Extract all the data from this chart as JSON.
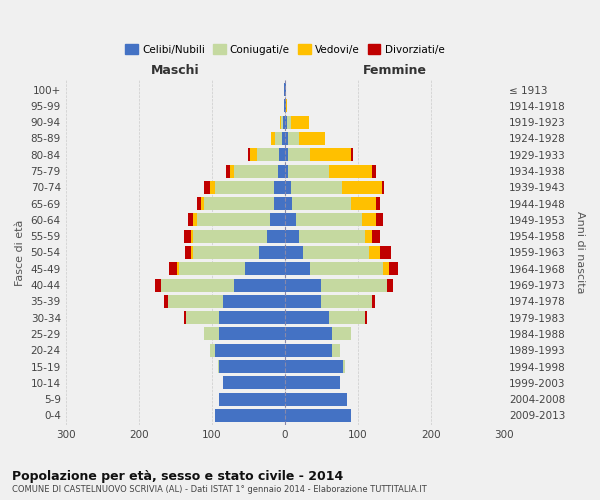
{
  "age_groups": [
    "0-4",
    "5-9",
    "10-14",
    "15-19",
    "20-24",
    "25-29",
    "30-34",
    "35-39",
    "40-44",
    "45-49",
    "50-54",
    "55-59",
    "60-64",
    "65-69",
    "70-74",
    "75-79",
    "80-84",
    "85-89",
    "90-94",
    "95-99",
    "100+"
  ],
  "birth_years": [
    "2009-2013",
    "2004-2008",
    "1999-2003",
    "1994-1998",
    "1989-1993",
    "1984-1988",
    "1979-1983",
    "1974-1978",
    "1969-1973",
    "1964-1968",
    "1959-1963",
    "1954-1958",
    "1949-1953",
    "1944-1948",
    "1939-1943",
    "1934-1938",
    "1929-1933",
    "1924-1928",
    "1919-1923",
    "1914-1918",
    "≤ 1913"
  ],
  "maschi": {
    "celibi": [
      95,
      90,
      85,
      90,
      95,
      90,
      90,
      85,
      70,
      55,
      35,
      25,
      20,
      15,
      15,
      10,
      8,
      4,
      2,
      1,
      1
    ],
    "coniugati": [
      0,
      0,
      0,
      2,
      8,
      20,
      45,
      75,
      100,
      90,
      90,
      100,
      100,
      95,
      80,
      60,
      30,
      10,
      3,
      0,
      0
    ],
    "vedovi": [
      0,
      0,
      0,
      0,
      0,
      0,
      0,
      0,
      0,
      2,
      3,
      3,
      5,
      5,
      8,
      5,
      10,
      5,
      2,
      0,
      0
    ],
    "divorziati": [
      0,
      0,
      0,
      0,
      0,
      0,
      3,
      5,
      8,
      12,
      8,
      10,
      8,
      5,
      8,
      5,
      3,
      0,
      0,
      0,
      0
    ]
  },
  "femmine": {
    "nubili": [
      90,
      85,
      75,
      80,
      65,
      65,
      60,
      50,
      50,
      35,
      25,
      20,
      15,
      10,
      8,
      5,
      5,
      5,
      3,
      1,
      1
    ],
    "coniugate": [
      0,
      0,
      0,
      3,
      10,
      25,
      50,
      70,
      90,
      100,
      90,
      90,
      90,
      80,
      70,
      55,
      30,
      15,
      5,
      0,
      0
    ],
    "vedove": [
      0,
      0,
      0,
      0,
      0,
      0,
      0,
      0,
      0,
      8,
      15,
      10,
      20,
      35,
      55,
      60,
      55,
      35,
      25,
      2,
      0
    ],
    "divorziate": [
      0,
      0,
      0,
      0,
      0,
      0,
      2,
      3,
      8,
      12,
      15,
      10,
      10,
      5,
      3,
      5,
      3,
      0,
      0,
      0,
      0
    ]
  },
  "colors": {
    "celibi": "#4472c4",
    "coniugati": "#c5d9a0",
    "vedovi": "#ffc000",
    "divorziati": "#c00000"
  },
  "title": "Popolazione per età, sesso e stato civile - 2014",
  "subtitle": "COMUNE DI CASTELNUOVO SCRIVIA (AL) - Dati ISTAT 1° gennaio 2014 - Elaborazione TUTTITALIA.IT",
  "xlabel_left": "Maschi",
  "xlabel_right": "Femmine",
  "ylabel_left": "Fasce di età",
  "ylabel_right": "Anni di nascita",
  "xlim": 300,
  "bg_color": "#f0f0f0",
  "grid_color": "#cccccc",
  "legend_labels": [
    "Celibi/Nubili",
    "Coniugati/e",
    "Vedovi/e",
    "Divorziati/e"
  ]
}
